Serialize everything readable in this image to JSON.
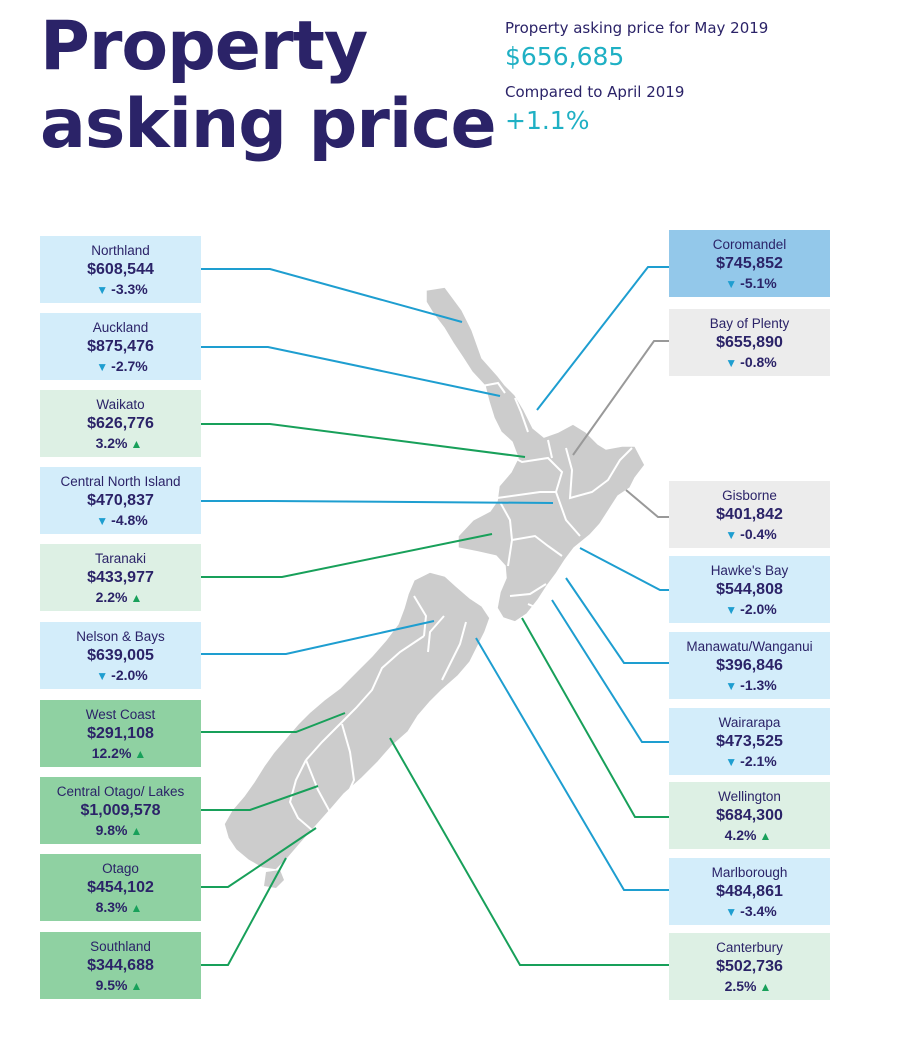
{
  "title_line1": "Property",
  "title_line2": "asking price",
  "summary": {
    "label1": "Property asking price for May 2019",
    "value1": "$656,685",
    "label2": "Compared to April 2019",
    "value2": "+1.1%"
  },
  "colors": {
    "title": "#2b2368",
    "accent": "#1fb0c4",
    "down_arrow": "#1e9ed0",
    "up_arrow": "#18a05a",
    "leader_blue": "#1e9ed0",
    "leader_green": "#18a05a",
    "leader_grey": "#999999",
    "map_fill": "#cccccc"
  },
  "regions_left": [
    {
      "name": "Northland",
      "price": "$608,544",
      "change": "-3.3%",
      "dir": "down",
      "color": "c-lb"
    },
    {
      "name": "Auckland",
      "price": "$875,476",
      "change": "-2.7%",
      "dir": "down",
      "color": "c-lb"
    },
    {
      "name": "Waikato",
      "price": "$626,776",
      "change": "3.2%",
      "dir": "up",
      "color": "c-lg"
    },
    {
      "name": "Central North Island",
      "price": "$470,837",
      "change": "-4.8%",
      "dir": "down",
      "color": "c-lb"
    },
    {
      "name": "Taranaki",
      "price": "$433,977",
      "change": "2.2%",
      "dir": "up",
      "color": "c-lg"
    },
    {
      "name": "Nelson & Bays",
      "price": "$639,005",
      "change": "-2.0%",
      "dir": "down",
      "color": "c-lb"
    },
    {
      "name": "West Coast",
      "price": "$291,108",
      "change": "12.2%",
      "dir": "up",
      "color": "c-mg"
    },
    {
      "name": "Central Otago/ Lakes",
      "price": "$1,009,578",
      "change": "9.8%",
      "dir": "up",
      "color": "c-mg"
    },
    {
      "name": "Otago",
      "price": "$454,102",
      "change": "8.3%",
      "dir": "up",
      "color": "c-mg"
    },
    {
      "name": "Southland",
      "price": "$344,688",
      "change": "9.5%",
      "dir": "up",
      "color": "c-mg"
    }
  ],
  "regions_right": [
    {
      "name": "Coromandel",
      "price": "$745,852",
      "change": "-5.1%",
      "dir": "down",
      "color": "c-db"
    },
    {
      "name": "Bay of Plenty",
      "price": "$655,890",
      "change": "-0.8%",
      "dir": "down",
      "color": "c-gy"
    },
    {
      "name": "Gisborne",
      "price": "$401,842",
      "change": "-0.4%",
      "dir": "down",
      "color": "c-gy"
    },
    {
      "name": "Hawke's Bay",
      "price": "$544,808",
      "change": "-2.0%",
      "dir": "down",
      "color": "c-lb"
    },
    {
      "name": "Manawatu/Wanganui",
      "price": "$396,846",
      "change": "-1.3%",
      "dir": "down",
      "color": "c-lb"
    },
    {
      "name": "Wairarapa",
      "price": "$473,525",
      "change": "-2.1%",
      "dir": "down",
      "color": "c-lb"
    },
    {
      "name": "Wellington",
      "price": "$684,300",
      "change": "4.2%",
      "dir": "up",
      "color": "c-lg"
    },
    {
      "name": "Marlborough",
      "price": "$484,861",
      "change": "-3.4%",
      "dir": "down",
      "color": "c-lb"
    },
    {
      "name": "Canterbury",
      "price": "$502,736",
      "change": "2.5%",
      "dir": "up",
      "color": "c-lg"
    }
  ]
}
